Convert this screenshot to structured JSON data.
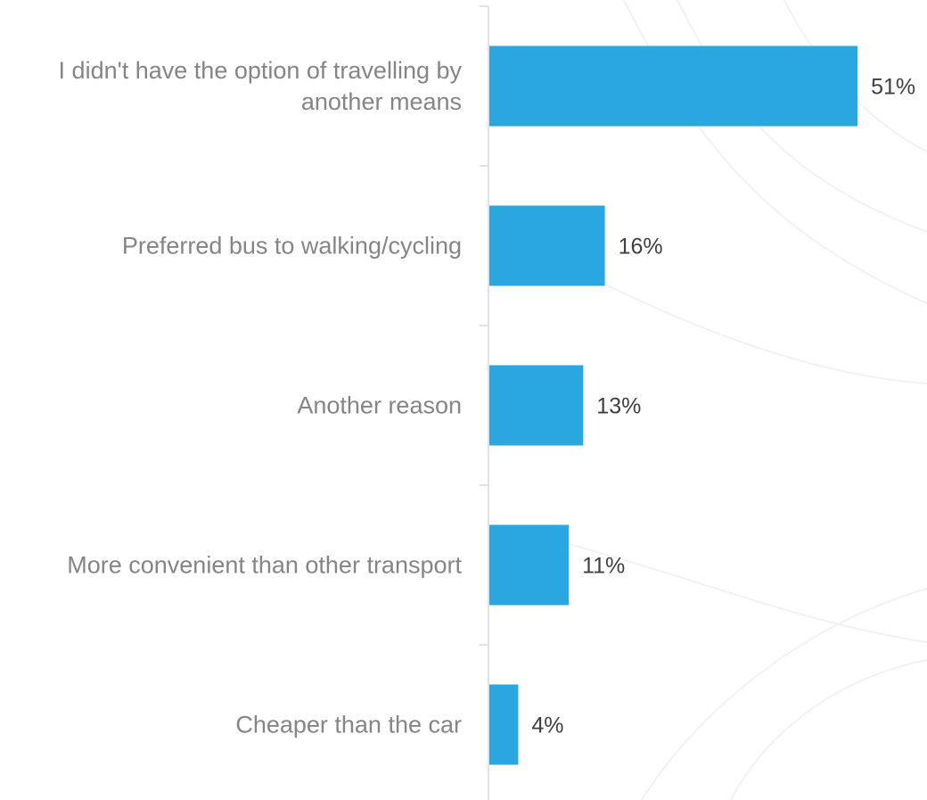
{
  "chart_data": {
    "type": "bar",
    "orientation": "horizontal",
    "categories": [
      "I didn't have the option of travelling by another means",
      "Preferred bus to walking/cycling",
      "Another reason",
      "More convenient than other transport",
      "Cheaper than the car"
    ],
    "category_lines": [
      [
        "I didn't have the option of travelling by",
        "another means"
      ],
      [
        "Preferred bus to walking/cycling"
      ],
      [
        "Another reason"
      ],
      [
        "More convenient than other transport"
      ],
      [
        "Cheaper than the car"
      ]
    ],
    "values": [
      51,
      16,
      13,
      11,
      4
    ],
    "value_labels": [
      "51%",
      "16%",
      "13%",
      "11%",
      "4%"
    ],
    "unit": "%",
    "title": "",
    "xlabel": "",
    "ylabel": "",
    "xlim": [
      0,
      60
    ],
    "grid": false,
    "legend": "none",
    "colors": {
      "bar": "#29A7E1",
      "axis": "#D9D9D9",
      "category_text": "#858585",
      "value_text": "#404040"
    }
  }
}
